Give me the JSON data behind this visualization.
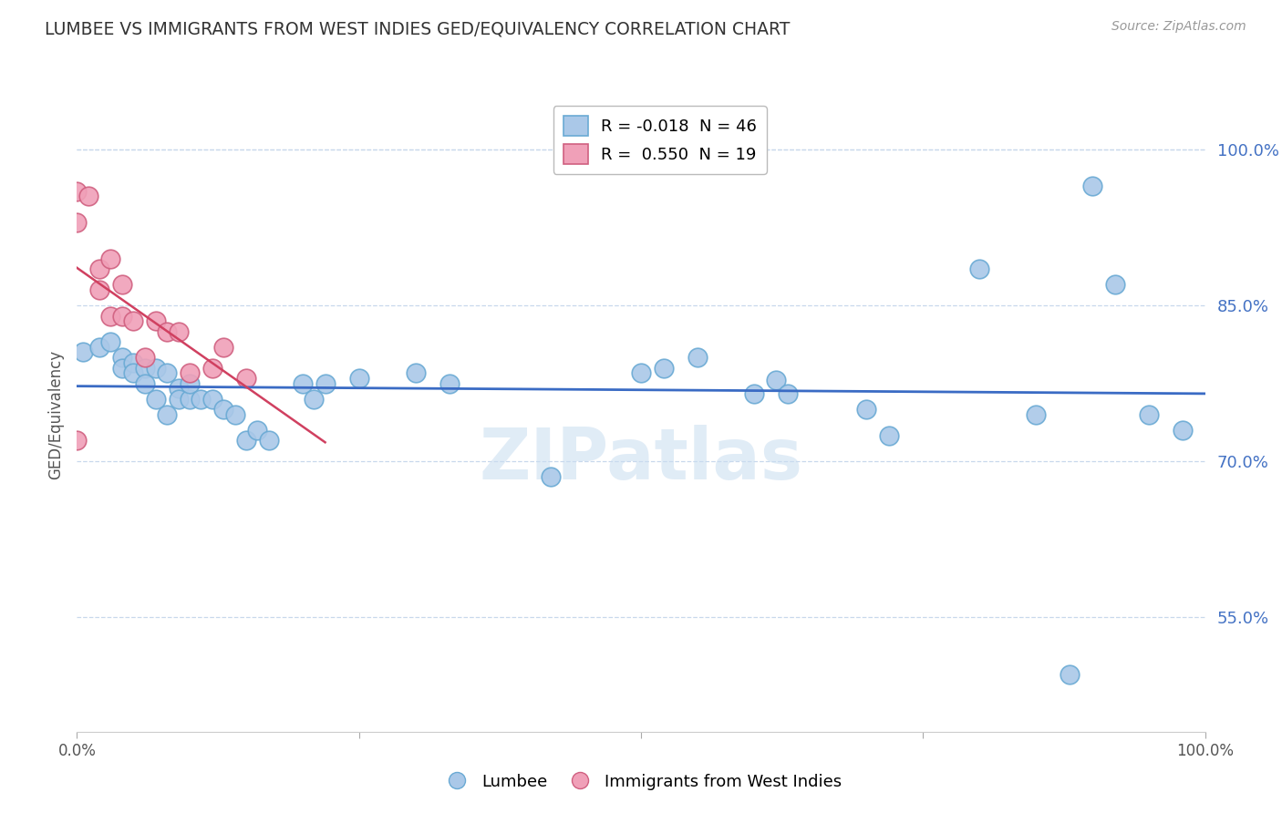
{
  "title": "LUMBEE VS IMMIGRANTS FROM WEST INDIES GED/EQUIVALENCY CORRELATION CHART",
  "source": "Source: ZipAtlas.com",
  "ylabel": "GED/Equivalency",
  "xlim": [
    0.0,
    1.0
  ],
  "ylim": [
    0.44,
    1.05
  ],
  "yticks": [
    0.55,
    0.7,
    0.85,
    1.0
  ],
  "ytick_labels": [
    "55.0%",
    "70.0%",
    "85.0%",
    "100.0%"
  ],
  "watermark": "ZIPatlas",
  "legend_entries": [
    {
      "label": "R = -0.018  N = 46",
      "color": "#aac8e8"
    },
    {
      "label": "R =  0.550  N = 19",
      "color": "#f0a0b8"
    }
  ],
  "lumbee_color": "#aac8e8",
  "lumbee_edge": "#6aaad4",
  "immigrants_color": "#f0a0b8",
  "immigrants_edge": "#d06080",
  "trend_lumbee_color": "#3a6bc4",
  "trend_immigrants_color": "#d04060",
  "grid_color": "#c8d8ec",
  "lumbee_x": [
    0.005,
    0.02,
    0.03,
    0.04,
    0.04,
    0.05,
    0.05,
    0.06,
    0.06,
    0.07,
    0.07,
    0.08,
    0.08,
    0.09,
    0.09,
    0.1,
    0.1,
    0.11,
    0.12,
    0.13,
    0.14,
    0.15,
    0.16,
    0.17,
    0.2,
    0.21,
    0.22,
    0.25,
    0.3,
    0.33,
    0.42,
    0.5,
    0.52,
    0.55,
    0.6,
    0.62,
    0.63,
    0.7,
    0.72,
    0.8,
    0.85,
    0.88,
    0.9,
    0.92,
    0.95,
    0.98
  ],
  "lumbee_y": [
    0.805,
    0.81,
    0.815,
    0.8,
    0.79,
    0.795,
    0.785,
    0.79,
    0.775,
    0.79,
    0.76,
    0.785,
    0.745,
    0.77,
    0.76,
    0.76,
    0.775,
    0.76,
    0.76,
    0.75,
    0.745,
    0.72,
    0.73,
    0.72,
    0.775,
    0.76,
    0.775,
    0.78,
    0.785,
    0.775,
    0.685,
    0.785,
    0.79,
    0.8,
    0.765,
    0.778,
    0.765,
    0.75,
    0.725,
    0.885,
    0.745,
    0.495,
    0.965,
    0.87,
    0.745,
    0.73
  ],
  "immigrants_x": [
    0.0,
    0.0,
    0.0,
    0.01,
    0.02,
    0.02,
    0.03,
    0.03,
    0.04,
    0.04,
    0.05,
    0.06,
    0.07,
    0.08,
    0.09,
    0.1,
    0.12,
    0.13,
    0.15
  ],
  "immigrants_y": [
    0.96,
    0.93,
    0.72,
    0.955,
    0.885,
    0.865,
    0.895,
    0.84,
    0.87,
    0.84,
    0.835,
    0.8,
    0.835,
    0.825,
    0.825,
    0.785,
    0.79,
    0.81,
    0.78
  ]
}
